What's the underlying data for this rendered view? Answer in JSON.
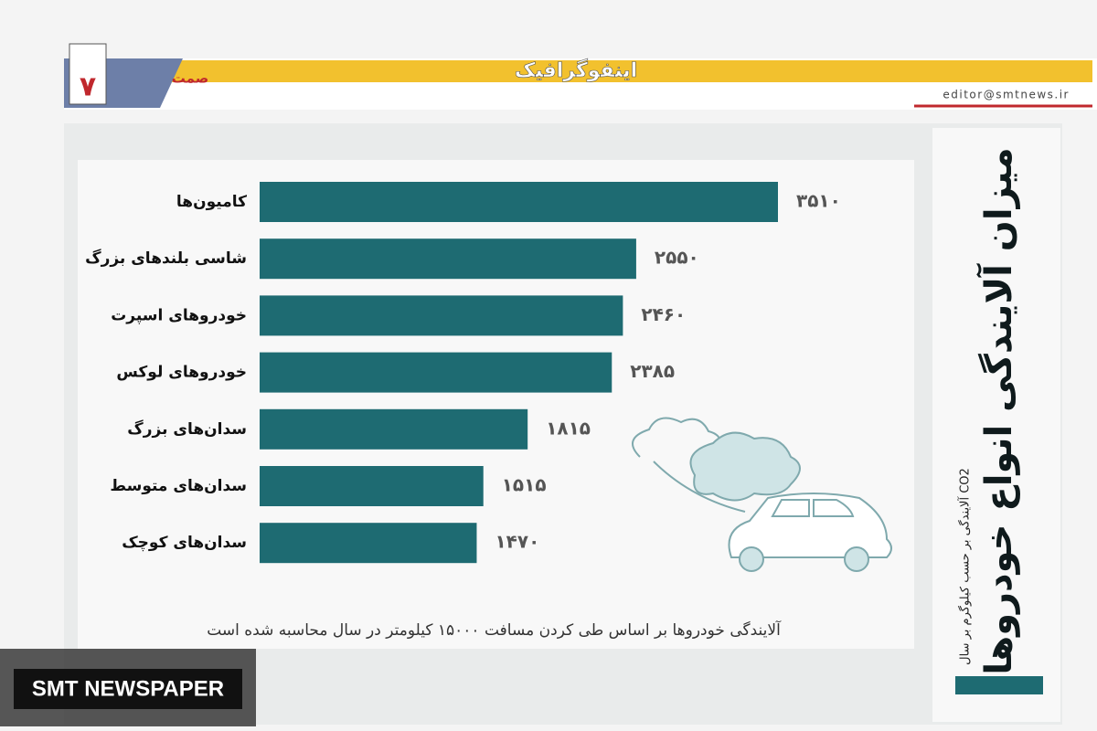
{
  "header": {
    "section": "اینفوگرافیک",
    "email": "editor@smtnews.ir",
    "page_number": "۷",
    "logo": "صمت"
  },
  "watermark": "SMT NEWSPAPER",
  "chart_data": {
    "type": "bar",
    "orientation": "horizontal",
    "title": "میزان آلایندگی انواع خودروها",
    "subtitle": "آلایندگی بر حسب کیلوگرم بر سال CO2",
    "note": "آلایندگی خودروها بر اساس طی کردن مسافت ۱۵۰۰۰ کیلومتر در سال محاسبه شده است",
    "categories": [
      "کامیون‌ها",
      "شاسی بلندهای بزرگ",
      "خودروهای اسپرت",
      "خودروهای لوکس",
      "سدان‌های بزرگ",
      "سدان‌های متوسط",
      "سدان‌های کوچک"
    ],
    "values": [
      3510,
      2550,
      2460,
      2385,
      1815,
      1515,
      1470
    ],
    "value_labels": [
      "۳۵۱۰",
      "۲۵۵۰",
      "۲۴۶۰",
      "۲۳۸۵",
      "۱۸۱۵",
      "۱۵۱۵",
      "۱۴۷۰"
    ],
    "color": "#1e6b72"
  }
}
